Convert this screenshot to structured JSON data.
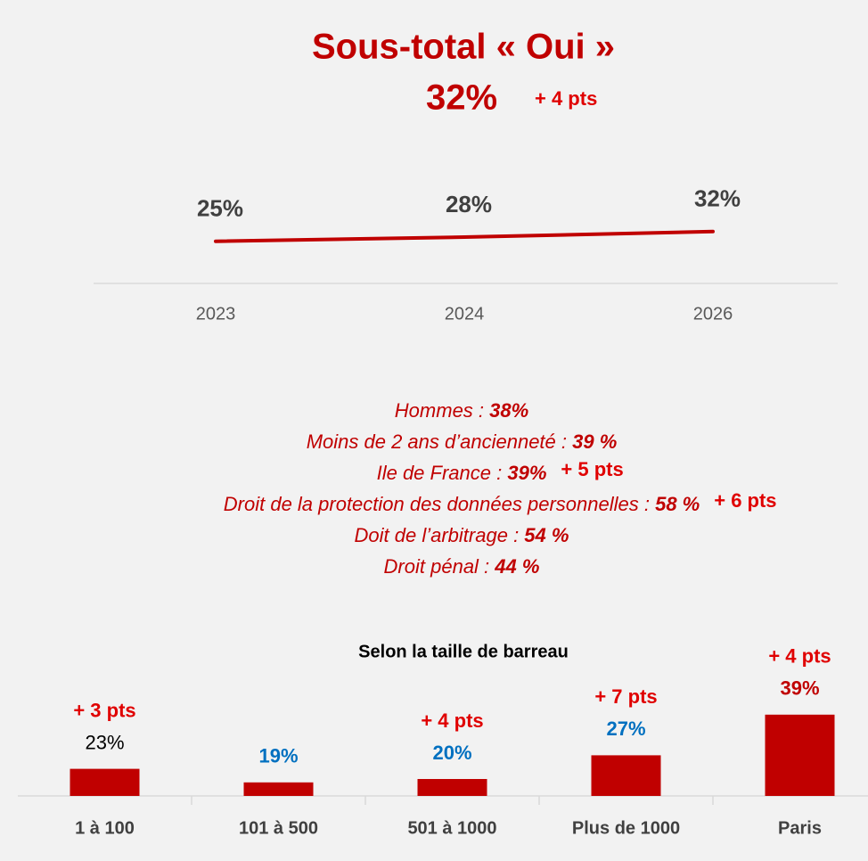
{
  "header": {
    "title": "Sous-total « Oui »",
    "value": "32%",
    "change": "+ 4 pts"
  },
  "highlights": [
    {
      "label": "Hommes : ",
      "value": "38%",
      "change": null
    },
    {
      "label": "Moins de 2 ans d’ancienneté : ",
      "value": "39 %",
      "change": null
    },
    {
      "label": "Ile de France : ",
      "value": "39%",
      "change": "+ 5 pts"
    },
    {
      "label": "Droit de la protection des données personnelles : ",
      "value": "58 %",
      "change": "+ 6 pts"
    },
    {
      "label": "Doit de l’arbitrage : ",
      "value": "54 %",
      "change": null
    },
    {
      "label": "Droit pénal : ",
      "value": "44 %",
      "change": null
    }
  ],
  "chart_data": [
    {
      "type": "line",
      "categories": [
        "2023",
        "2024",
        "2026"
      ],
      "values": [
        25,
        28,
        32
      ],
      "value_labels": [
        "25%",
        "28%",
        "32%"
      ],
      "color": "#c00000",
      "ylim": [
        0,
        100
      ]
    },
    {
      "type": "bar",
      "title": "Selon la taille de barreau",
      "categories": [
        "1 à 100",
        "101 à 500",
        "501 à 1000",
        "Plus de 1000",
        "Paris"
      ],
      "values": [
        23,
        19,
        20,
        27,
        39
      ],
      "value_labels": [
        "23%",
        "19%",
        "20%",
        "27%",
        "39%"
      ],
      "label_colors": [
        "#000000",
        "#0070c0",
        "#0070c0",
        "#0070c0",
        "#c00000"
      ],
      "changes": [
        "+ 3 pts",
        null,
        "+ 4 pts",
        "+ 7 pts",
        "+ 4 pts"
      ],
      "color": "#c00000",
      "ylim": [
        15,
        40
      ]
    }
  ]
}
